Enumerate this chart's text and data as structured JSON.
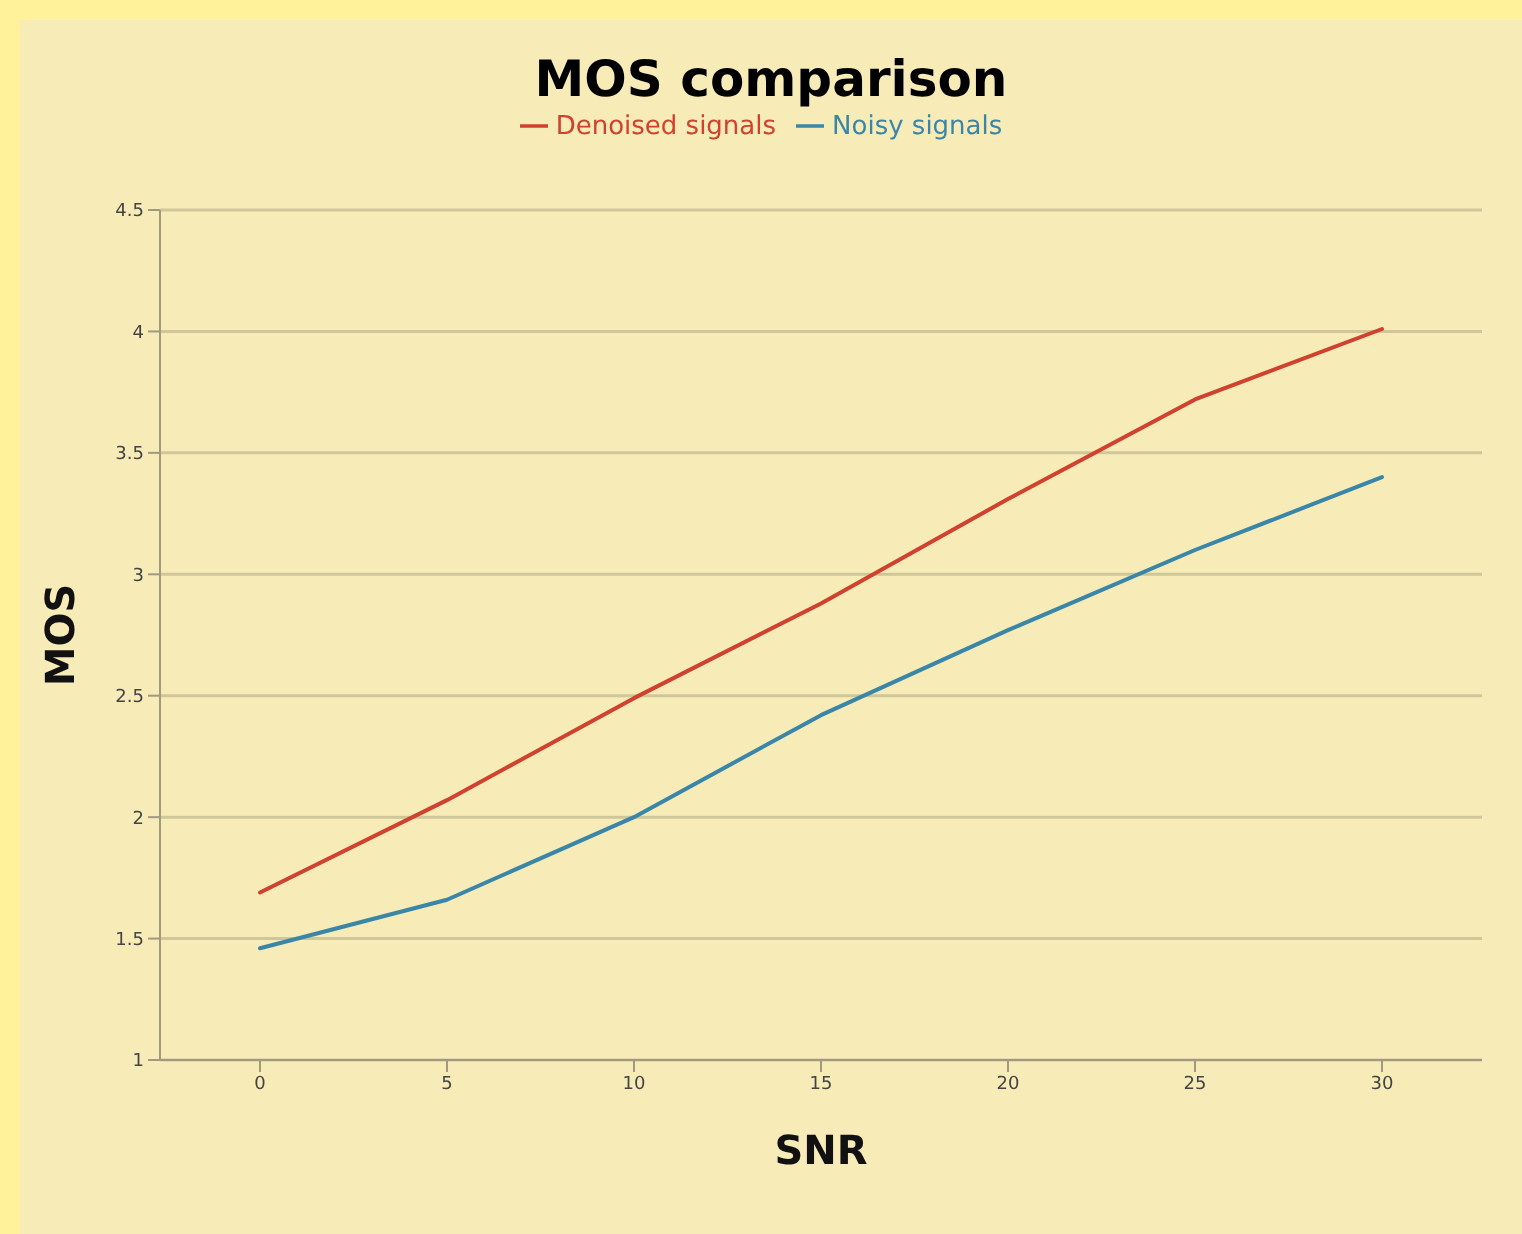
{
  "chart_data": {
    "type": "line",
    "title": "MOS comparison",
    "xlabel": "SNR",
    "ylabel": "MOS",
    "categories": [
      "0",
      "5",
      "10",
      "15",
      "20",
      "25",
      "30"
    ],
    "series": [
      {
        "name": "Noisy signals",
        "color": "#3a86a8",
        "values": [
          1.46,
          1.66,
          2.0,
          2.42,
          2.77,
          3.1,
          3.4
        ]
      },
      {
        "name": "Denoised signals",
        "color": "#d0412e",
        "values": [
          1.69,
          2.07,
          2.49,
          2.88,
          3.31,
          3.72,
          4.01
        ]
      }
    ],
    "ylim": [
      1,
      4.5
    ],
    "yticks": [
      1,
      1.5,
      2,
      2.5,
      3,
      3.5,
      4,
      4.5
    ],
    "grid": "y",
    "legend": "top",
    "marker": "none",
    "line_style": "solid"
  }
}
